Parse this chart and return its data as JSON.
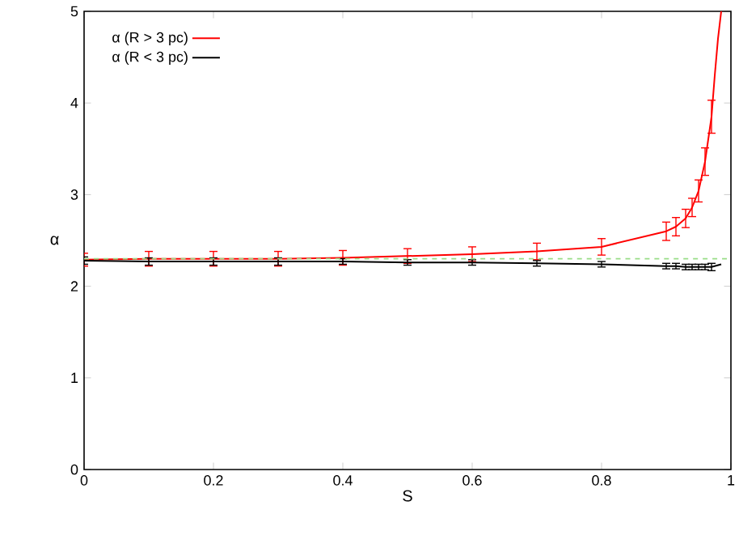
{
  "chart_data": {
    "type": "line",
    "xlabel": "S",
    "ylabel": "α",
    "x": [
      0,
      0.1,
      0.2,
      0.3,
      0.4,
      0.5,
      0.6,
      0.7,
      0.8,
      0.9,
      0.915,
      0.93,
      0.94,
      0.95,
      0.96,
      0.97,
      0.975,
      0.98,
      0.985
    ],
    "series": [
      {
        "name": "α (R > 3 pc)",
        "color": "#ff0000",
        "values": [
          2.29,
          2.3,
          2.3,
          2.3,
          2.31,
          2.33,
          2.35,
          2.38,
          2.43,
          2.6,
          2.65,
          2.74,
          2.86,
          3.04,
          3.36,
          3.85,
          4.3,
          4.7,
          5.0
        ],
        "errors": [
          0.07,
          0.08,
          0.08,
          0.08,
          0.08,
          0.08,
          0.08,
          0.09,
          0.09,
          0.1,
          0.1,
          0.1,
          0.1,
          0.12,
          0.15,
          0.18,
          null,
          null,
          null
        ]
      },
      {
        "name": "α (R < 3 pc)",
        "color": "#000000",
        "values": [
          2.28,
          2.27,
          2.27,
          2.27,
          2.27,
          2.26,
          2.26,
          2.25,
          2.24,
          2.22,
          2.22,
          2.21,
          2.21,
          2.21,
          2.21,
          2.21,
          2.22,
          2.23,
          2.24
        ],
        "errors": [
          0.04,
          0.04,
          0.04,
          0.04,
          0.03,
          0.03,
          0.03,
          0.03,
          0.03,
          0.03,
          0.03,
          0.03,
          0.03,
          0.03,
          0.03,
          0.04,
          null,
          null,
          null
        ]
      }
    ],
    "ref_lines": [
      {
        "axis": "y",
        "value": 2.3,
        "color": "#99dd88",
        "line_style": "dashed"
      }
    ],
    "xlim": [
      0,
      1
    ],
    "ylim": [
      0,
      5
    ],
    "xticks": [
      0,
      0.2,
      0.4,
      0.6,
      0.8,
      1
    ],
    "yticks": [
      0,
      1,
      2,
      3,
      4,
      5
    ],
    "legend": "top left",
    "marker": "none",
    "line_style": "solid",
    "grid": false
  }
}
